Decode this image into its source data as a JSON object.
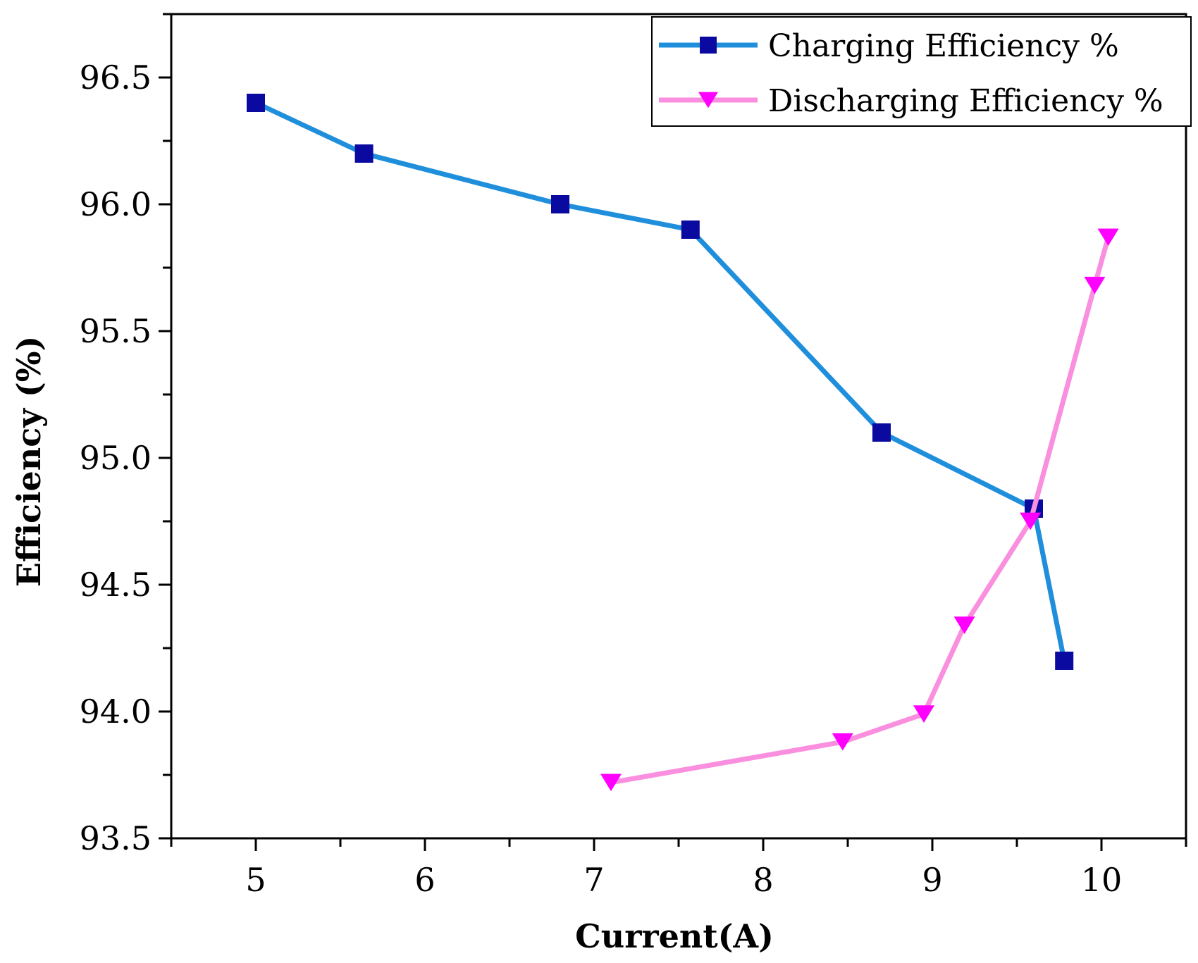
{
  "chart_data": {
    "type": "line",
    "title": "",
    "xlabel": "Current(A)",
    "ylabel": "Efficiency (%)",
    "xlim": [
      4.5,
      10.5
    ],
    "ylim": [
      93.5,
      96.75
    ],
    "x_ticks": [
      5,
      6,
      7,
      8,
      9,
      10
    ],
    "x_tick_labels": [
      "5",
      "6",
      "7",
      "8",
      "9",
      "10"
    ],
    "y_ticks": [
      93.5,
      94.0,
      94.5,
      95.0,
      95.5,
      96.0,
      96.5
    ],
    "y_tick_labels": [
      "93.5",
      "94.0",
      "94.5",
      "95.0",
      "95.5",
      "96.0",
      "96.5"
    ],
    "grid": false,
    "legend_position": "top-right",
    "series": [
      {
        "name": "Charging Efficiency %",
        "line_color": "#1f8fdc",
        "marker_color": "#0a0aa0",
        "marker": "square",
        "x": [
          5.0,
          5.64,
          6.8,
          7.57,
          8.7,
          9.6,
          9.78
        ],
        "y": [
          96.4,
          96.2,
          96.0,
          95.9,
          95.1,
          94.8,
          94.2
        ]
      },
      {
        "name": "Discharging Efficiency %",
        "line_color": "#f98fde",
        "marker_color": "#ff00ff",
        "marker": "triangle-down",
        "x": [
          7.1,
          8.47,
          8.95,
          9.19,
          9.58,
          9.96,
          10.04
        ],
        "y": [
          93.72,
          93.88,
          93.99,
          94.34,
          94.75,
          95.68,
          95.87
        ]
      }
    ]
  }
}
